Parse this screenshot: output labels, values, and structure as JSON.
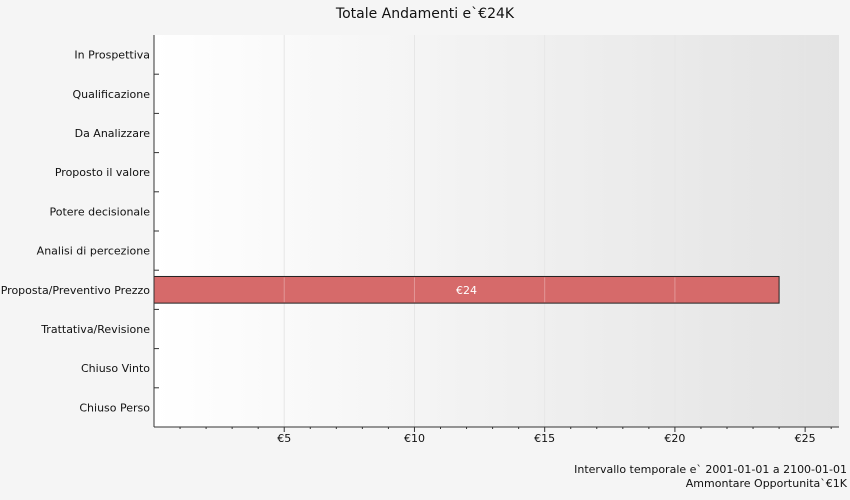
{
  "chart_data": {
    "type": "bar",
    "orientation": "horizontal",
    "title": "Totale Andamenti e`€24K",
    "categories": [
      "In Prospettiva",
      "Qualificazione",
      "Da Analizzare",
      "Proposto il valore",
      "Potere decisionale",
      "Analisi di percezione",
      "Proposta/Preventivo Prezzo",
      "Trattativa/Revisione",
      "Chiuso Vinto",
      "Chiuso Perso"
    ],
    "values": [
      0,
      0,
      0,
      0,
      0,
      0,
      24,
      0,
      0,
      0
    ],
    "data_labels": [
      "",
      "",
      "",
      "",
      "",
      "",
      "€24",
      "",
      "",
      ""
    ],
    "xlim": [
      0,
      26.3
    ],
    "xticks": [
      5,
      10,
      15,
      20,
      25
    ],
    "xtick_labels": [
      "€5",
      "€10",
      "€15",
      "€20",
      "€25"
    ],
    "grid": true,
    "bar_color": "#d66a6a"
  },
  "footer": {
    "line1": "Intervallo temporale e` 2001-01-01 a 2100-01-01",
    "line2": "Ammontare Opportunita`€1K"
  }
}
